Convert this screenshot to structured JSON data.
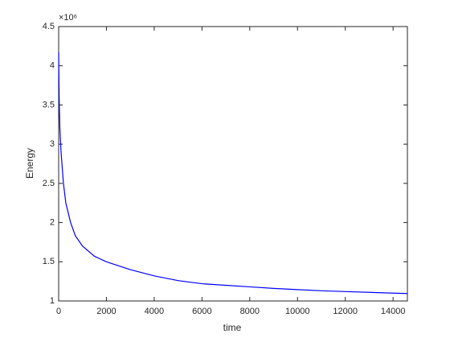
{
  "chart_data": {
    "type": "line",
    "x_label": "time",
    "y_label": "Energy",
    "y_exponent_label": "×10⁶",
    "x": [
      0,
      20,
      50,
      100,
      200,
      300,
      500,
      700,
      1000,
      1500,
      2000,
      3000,
      4000,
      5000,
      6000,
      7000,
      8000,
      9000,
      10000,
      11000,
      12000,
      13000,
      14000,
      14600
    ],
    "series": [
      {
        "name": "Energy",
        "color": "#0000ff",
        "values": [
          4.17,
          3.6,
          3.2,
          2.9,
          2.5,
          2.25,
          2.0,
          1.83,
          1.7,
          1.57,
          1.5,
          1.4,
          1.32,
          1.26,
          1.22,
          1.2,
          1.18,
          1.16,
          1.145,
          1.13,
          1.12,
          1.11,
          1.1,
          1.095
        ]
      }
    ],
    "xlim": [
      0,
      14600
    ],
    "xticks": [
      0,
      2000,
      4000,
      6000,
      8000,
      10000,
      12000,
      14000
    ],
    "ylim": [
      1,
      4.5
    ],
    "yticks": [
      1,
      1.5,
      2,
      2.5,
      3,
      3.5,
      4,
      4.5
    ],
    "grid": false
  }
}
